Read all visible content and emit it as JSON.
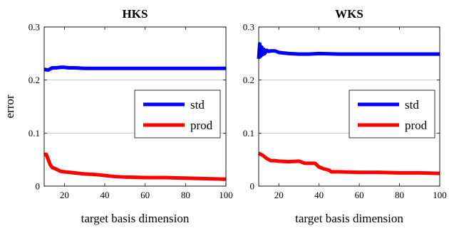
{
  "chart_data": [
    {
      "type": "line",
      "title": "HKS",
      "xlabel": "target basis dimension",
      "ylabel": "error",
      "xlim": [
        10,
        100
      ],
      "ylim": [
        0,
        0.3
      ],
      "xticks": [
        20,
        40,
        60,
        80,
        100
      ],
      "yticks": [
        0,
        0.1,
        0.2,
        0.3
      ],
      "xtick_labels": [
        "20",
        "40",
        "60",
        "80",
        "100"
      ],
      "ytick_labels": [
        "0",
        "0.1",
        "0.2",
        "0.3"
      ],
      "grid": "horizontal",
      "legend_position": "center-right",
      "series": [
        {
          "name": "std",
          "color": "#0000ff",
          "x": [
            10,
            12,
            14,
            16,
            18,
            20,
            22,
            25,
            30,
            35,
            40,
            50,
            60,
            70,
            80,
            90,
            100
          ],
          "y": [
            0.22,
            0.219,
            0.223,
            0.223,
            0.224,
            0.224,
            0.223,
            0.223,
            0.222,
            0.222,
            0.222,
            0.222,
            0.222,
            0.222,
            0.222,
            0.222,
            0.222
          ]
        },
        {
          "name": "prod",
          "color": "#ff0000",
          "x": [
            10,
            11,
            12,
            13,
            14,
            16,
            18,
            20,
            25,
            30,
            35,
            40,
            45,
            50,
            60,
            70,
            80,
            90,
            100
          ],
          "y": [
            0.06,
            0.06,
            0.05,
            0.04,
            0.035,
            0.032,
            0.028,
            0.027,
            0.025,
            0.023,
            0.022,
            0.02,
            0.018,
            0.017,
            0.016,
            0.016,
            0.015,
            0.014,
            0.013
          ]
        }
      ]
    },
    {
      "type": "line",
      "title": "WKS",
      "xlabel": "target basis dimension",
      "ylabel": "",
      "xlim": [
        10,
        100
      ],
      "ylim": [
        0,
        0.3
      ],
      "xticks": [
        20,
        40,
        60,
        80,
        100
      ],
      "yticks": [
        0,
        0.1,
        0.2,
        0.3
      ],
      "xtick_labels": [
        "20",
        "40",
        "60",
        "80",
        "100"
      ],
      "ytick_labels": [
        "0",
        "0.1",
        "0.2",
        "0.3"
      ],
      "grid": "horizontal",
      "legend_position": "center-right",
      "series": [
        {
          "name": "std",
          "color": "#0000ff",
          "x": [
            10,
            10.5,
            11,
            11.5,
            12,
            12.5,
            13,
            14,
            15,
            16,
            18,
            20,
            25,
            30,
            35,
            40,
            50,
            60,
            70,
            80,
            90,
            100
          ],
          "y": [
            0.24,
            0.268,
            0.245,
            0.262,
            0.248,
            0.258,
            0.25,
            0.256,
            0.254,
            0.255,
            0.255,
            0.252,
            0.25,
            0.249,
            0.249,
            0.25,
            0.249,
            0.249,
            0.249,
            0.249,
            0.249,
            0.249
          ]
        },
        {
          "name": "prod",
          "color": "#ff0000",
          "x": [
            10,
            12,
            14,
            16,
            18,
            20,
            25,
            30,
            33,
            35,
            38,
            40,
            42,
            45,
            46,
            50,
            60,
            70,
            80,
            90,
            100
          ],
          "y": [
            0.062,
            0.058,
            0.052,
            0.048,
            0.048,
            0.047,
            0.046,
            0.047,
            0.043,
            0.043,
            0.043,
            0.036,
            0.033,
            0.03,
            0.027,
            0.027,
            0.026,
            0.026,
            0.025,
            0.025,
            0.024
          ]
        }
      ]
    }
  ]
}
